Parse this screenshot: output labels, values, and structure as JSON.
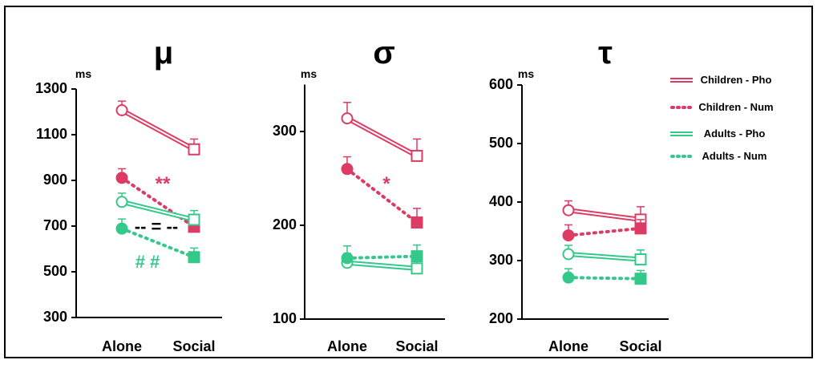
{
  "colors": {
    "children": "#dc3c64",
    "adults": "#34c98a",
    "axis": "#000000",
    "border": "#000000",
    "equal_marker": "#000000"
  },
  "legend": [
    {
      "label": "Children - Pho",
      "group": "children",
      "style": "double"
    },
    {
      "label": "Children - Num",
      "group": "children",
      "style": "dotted"
    },
    {
      "label": "Adults - Pho",
      "group": "adults",
      "style": "double"
    },
    {
      "label": "Adults - Num",
      "group": "adults",
      "style": "dotted"
    }
  ],
  "chart_data": [
    {
      "type": "line",
      "title": "μ",
      "unit": "ms",
      "x": [
        "Alone",
        "Social"
      ],
      "ylim": [
        300,
        1300
      ],
      "yticks": [
        300,
        500,
        700,
        900,
        1100,
        1300
      ],
      "series": [
        {
          "name": "Children - Pho",
          "values": [
            1207,
            1036
          ],
          "err": [
            40,
            45
          ]
        },
        {
          "name": "Children - Num",
          "values": [
            911,
            697
          ],
          "err": [
            40,
            45
          ]
        },
        {
          "name": "Adults - Pho",
          "values": [
            806,
            728
          ],
          "err": [
            38,
            40
          ]
        },
        {
          "name": "Adults - Num",
          "values": [
            689,
            564
          ],
          "err": [
            42,
            40
          ]
        }
      ],
      "annotations": [
        {
          "text": "**",
          "group": "children"
        },
        {
          "text": "-- = --",
          "group": "equal"
        },
        {
          "text": "# #",
          "group": "adults"
        }
      ]
    },
    {
      "type": "line",
      "title": "σ",
      "unit": "ms",
      "x": [
        "Alone",
        "Social"
      ],
      "ylim": [
        100,
        350
      ],
      "yticks": [
        100,
        200,
        300
      ],
      "series": [
        {
          "name": "Children - Pho",
          "values": [
            314,
            274
          ],
          "err": [
            17,
            18
          ]
        },
        {
          "name": "Children - Num",
          "values": [
            260,
            203
          ],
          "err": [
            13,
            15
          ]
        },
        {
          "name": "Adults - Pho",
          "values": [
            160,
            154
          ],
          "err": [
            10,
            10
          ]
        },
        {
          "name": "Adults - Num",
          "values": [
            165,
            167
          ],
          "err": [
            13,
            12
          ]
        }
      ],
      "annotations": [
        {
          "text": "*",
          "group": "children"
        }
      ]
    },
    {
      "type": "line",
      "title": "τ",
      "unit": "ms",
      "x": [
        "Alone",
        "Social"
      ],
      "ylim": [
        200,
        600
      ],
      "yticks": [
        200,
        300,
        400,
        500,
        600
      ],
      "series": [
        {
          "name": "Children - Pho",
          "values": [
            386,
            370
          ],
          "err": [
            16,
            22
          ]
        },
        {
          "name": "Children - Num",
          "values": [
            343,
            355
          ],
          "err": [
            18,
            15
          ]
        },
        {
          "name": "Adults - Pho",
          "values": [
            311,
            302
          ],
          "err": [
            15,
            16
          ]
        },
        {
          "name": "Adults - Num",
          "values": [
            271,
            269
          ],
          "err": [
            15,
            14
          ]
        }
      ],
      "annotations": []
    }
  ]
}
